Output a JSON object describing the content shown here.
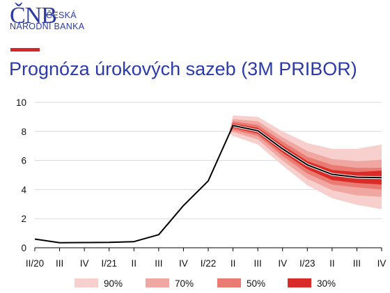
{
  "header": {
    "logo_mark": "ČNB",
    "logo_line1": "ČESKÁ",
    "logo_line2": "NÁRODNÍ BANKA",
    "title": "Prognóza úrokových sazeb (3M PRIBOR)"
  },
  "colors": {
    "brand_blue": "#2b3aa8",
    "accent_red": "#d7262b",
    "band_90": "#f7cfcc",
    "band_70": "#f0a7a1",
    "band_50": "#e97b72",
    "band_30": "#d92b27",
    "line": "#000000"
  },
  "chart_data": {
    "type": "line",
    "title": "Prognóza úrokových sazeb (3M PRIBOR)",
    "xlabel": "",
    "ylabel": "",
    "categories": [
      "II/20",
      "III",
      "IV",
      "I/21",
      "II",
      "III",
      "IV",
      "I/22",
      "II",
      "III",
      "IV",
      "I/23",
      "II",
      "III",
      "IV"
    ],
    "ylim": [
      0,
      10
    ],
    "yticks": [
      0,
      2,
      4,
      6,
      8,
      10
    ],
    "grid": true,
    "legend_position": "bottom",
    "series": [
      {
        "type": "line",
        "x": [
          0,
          1,
          2,
          3,
          4,
          5,
          6,
          7,
          8,
          9,
          10,
          11,
          12,
          13,
          14
        ],
        "values": [
          0.6,
          0.35,
          0.36,
          0.37,
          0.42,
          0.9,
          2.9,
          4.6,
          8.4,
          8.05,
          6.8,
          5.7,
          5.05,
          4.85,
          4.82
        ]
      }
    ],
    "fan_x": [
      7.85,
      8,
      9,
      10,
      11,
      12,
      13,
      14
    ],
    "fan_center": [
      7.9,
      8.4,
      8.05,
      6.8,
      5.7,
      5.05,
      4.85,
      4.82
    ],
    "fan_bands": [
      {
        "name": "90%",
        "color": "#f7cfcc",
        "upper": [
          7.95,
          9.1,
          9.0,
          8.0,
          7.2,
          6.8,
          6.8,
          7.1
        ],
        "lower": [
          7.85,
          7.7,
          7.1,
          5.65,
          4.3,
          3.4,
          2.95,
          2.65
        ]
      },
      {
        "name": "70%",
        "color": "#f0a7a1",
        "upper": [
          7.95,
          8.85,
          8.7,
          7.6,
          6.65,
          6.1,
          5.95,
          6.05
        ],
        "lower": [
          7.85,
          7.95,
          7.45,
          6.0,
          4.75,
          3.95,
          3.6,
          3.5
        ]
      },
      {
        "name": "50%",
        "color": "#e97b72",
        "upper": [
          7.95,
          8.7,
          8.45,
          7.3,
          6.25,
          5.7,
          5.5,
          5.5
        ],
        "lower": [
          7.85,
          8.1,
          7.7,
          6.3,
          5.1,
          4.35,
          4.15,
          4.0
        ]
      },
      {
        "name": "30%",
        "color": "#d92b27",
        "upper": [
          7.92,
          8.55,
          8.25,
          7.05,
          5.95,
          5.35,
          5.2,
          5.3
        ],
        "lower": [
          7.88,
          8.25,
          7.85,
          6.55,
          5.4,
          4.65,
          4.45,
          4.35
        ]
      }
    ],
    "legend": [
      "90%",
      "70%",
      "50%",
      "30%"
    ]
  }
}
